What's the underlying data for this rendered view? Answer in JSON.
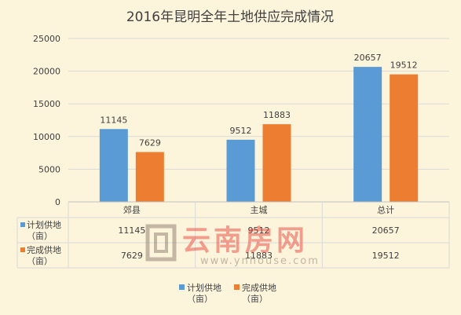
{
  "chart_data": {
    "type": "bar",
    "title": "2016年昆明全年土地供应完成情况",
    "categories": [
      "郊县",
      "主城",
      "总计"
    ],
    "series": [
      {
        "name": "计划供地（亩）",
        "label_lines": [
          "计划供地",
          "（亩）"
        ],
        "values": [
          11145,
          9512,
          20657
        ],
        "color": "#5b9bd5"
      },
      {
        "name": "完成供地（亩）",
        "label_lines": [
          "完成供地",
          "（亩）"
        ],
        "values": [
          7629,
          11883,
          19512
        ],
        "color": "#ed7d31"
      }
    ],
    "ylim": [
      0,
      25000
    ],
    "yticks": [
      0,
      5000,
      10000,
      15000,
      20000,
      25000
    ],
    "grid": true,
    "legend_position": "bottom",
    "data_table": true,
    "data_labels": true
  },
  "watermark": {
    "text": "云南房网",
    "url": "www.ynhouse.com",
    "color": "#e8473f"
  }
}
